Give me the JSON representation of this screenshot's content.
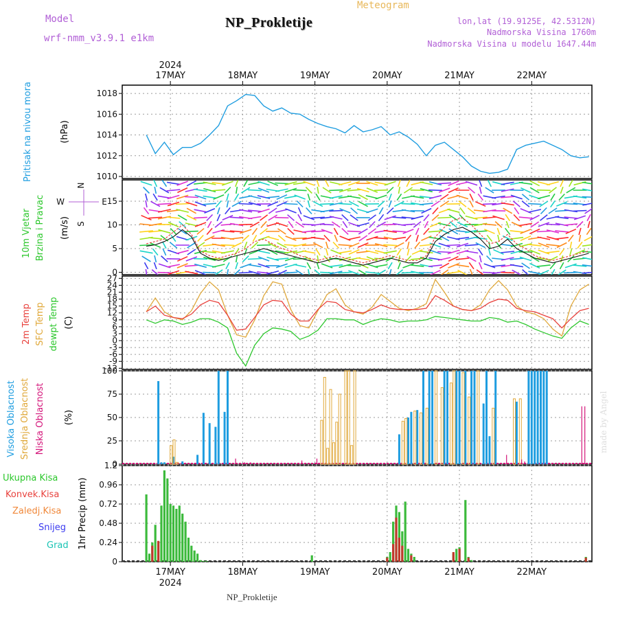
{
  "header": {
    "model_label": "Model",
    "model_name": "wrf-nmm_v3.9.1  e1km",
    "station": "NP_Prokletije",
    "meteogram": "Meteogram",
    "lonlat": "lon,lat (19.9125E, 42.5312N)",
    "altitude": "Nadmorska Visina 1760m",
    "altitude_model": "Nadmorska Visina u modelu 1647.44m"
  },
  "footer": {
    "station": "NP_Prokletije",
    "signature": "made by Angel"
  },
  "colors": {
    "pressure": "#1e9de0",
    "temp2m": "#e8413c",
    "sfc": "#e0a83a",
    "dew": "#2cc72c",
    "high": "#1e9de0",
    "mid": "#e0a83a",
    "low": "#d4157a",
    "precip": "#3cba3c",
    "conv": "#c0392b"
  },
  "chart_data": [
    {
      "type": "line",
      "panel": "pressure",
      "ylabel": "Pritisak na nivou mora",
      "unit": "(hPa)",
      "y_ticks": [
        "1018",
        "1016",
        "1014",
        "1012",
        "1010"
      ],
      "ylim": [
        1009.8,
        1018.8
      ],
      "date_labels": [
        "17MAY",
        "18MAY",
        "19MAY",
        "20MAY",
        "21MAY",
        "22MAY"
      ],
      "year_label": "2024",
      "x_hours": [
        0,
        3,
        6,
        9,
        12,
        15,
        18,
        21,
        24,
        27,
        30,
        33,
        36,
        39,
        42,
        45,
        48,
        51,
        54,
        57,
        60,
        63,
        66,
        69,
        72,
        75,
        78,
        81,
        84,
        87,
        90,
        93,
        96,
        99,
        102,
        105,
        108,
        111,
        114,
        117,
        120,
        123,
        126,
        129,
        132,
        135,
        138,
        141,
        144,
        147
      ],
      "series": [
        {
          "values": [
            1014.0,
            1012.2,
            1013.3,
            1012.1,
            1012.8,
            1012.8,
            1013.2,
            1014.0,
            1014.9,
            1016.8,
            1017.3,
            1017.9,
            1017.8,
            1016.8,
            1016.3,
            1016.6,
            1016.1,
            1016.0,
            1015.5,
            1015.1,
            1014.8,
            1014.6,
            1014.2,
            1014.9,
            1014.3,
            1014.5,
            1014.8,
            1014.0,
            1014.3,
            1013.8,
            1013.1,
            1012.0,
            1013.0,
            1013.3,
            1012.6,
            1011.9,
            1011.0,
            1010.5,
            1010.3,
            1010.4,
            1010.7,
            1012.6,
            1013.0,
            1013.2,
            1013.4,
            1013.0,
            1012.6,
            1012.0,
            1011.8,
            1011.9
          ]
        }
      ]
    },
    {
      "type": "line",
      "panel": "wind",
      "ylabel": [
        "10m Vjetar",
        "Brzina i Pravac"
      ],
      "unit": "(m/s)",
      "compass": [
        "N",
        "W",
        "E",
        "S"
      ],
      "y_ticks": [
        "15",
        "10",
        "5",
        "0"
      ],
      "ylim": [
        -0.5,
        19.5
      ],
      "x_hours": [
        0,
        3,
        6,
        9,
        12,
        15,
        18,
        21,
        24,
        27,
        30,
        33,
        36,
        39,
        42,
        45,
        48,
        51,
        54,
        57,
        60,
        63,
        66,
        69,
        72,
        75,
        78,
        81,
        84,
        87,
        90,
        93,
        96,
        99,
        102,
        105,
        108,
        111,
        114,
        117,
        120,
        123,
        126,
        129,
        132,
        135,
        138,
        141,
        144,
        147
      ],
      "series": [
        {
          "name": "speed",
          "values": [
            5.5,
            5.8,
            6.5,
            7.5,
            9.0,
            7.5,
            4.0,
            3.0,
            2.5,
            3.0,
            3.5,
            4.0,
            4.5,
            5.0,
            4.5,
            4.0,
            3.5,
            3.0,
            2.5,
            2.0,
            2.5,
            3.0,
            2.5,
            2.0,
            1.5,
            2.0,
            2.5,
            3.0,
            2.5,
            2.0,
            2.0,
            3.0,
            6.5,
            8.0,
            9.0,
            9.5,
            8.5,
            7.0,
            5.0,
            5.5,
            7.0,
            5.0,
            4.0,
            3.0,
            2.5,
            2.0,
            2.5,
            3.0,
            3.5,
            4.0
          ]
        },
        {
          "name": "gust",
          "values": [
            6.0,
            6.5,
            7.0,
            8.5,
            10.0,
            8.0,
            4.5,
            3.5,
            3.0,
            3.5,
            4.0,
            5.0,
            6.5,
            7.0,
            6.0,
            5.0,
            4.5,
            3.5,
            3.0,
            2.5,
            3.0,
            3.5,
            3.0,
            2.5,
            2.0,
            2.5,
            3.0,
            3.5,
            3.0,
            2.5,
            2.5,
            3.5,
            7.5,
            9.5,
            11.0,
            11.5,
            10.0,
            8.0,
            6.0,
            6.5,
            8.0,
            6.0,
            5.0,
            3.5,
            3.0,
            2.5,
            3.0,
            3.5,
            4.0,
            4.5
          ]
        }
      ]
    },
    {
      "type": "line",
      "panel": "temperature",
      "ylabel": [
        "2m Temp",
        "SFC Temp",
        "dewpt Temp"
      ],
      "unit": "(C)",
      "y_ticks": [
        "27",
        "24",
        "21",
        "18",
        "15",
        "12",
        "9",
        "6",
        "3",
        "0",
        "-3",
        "-6",
        "-9",
        "-12"
      ],
      "ylim": [
        -12.5,
        28
      ],
      "x_hours": [
        0,
        3,
        6,
        9,
        12,
        15,
        18,
        21,
        24,
        27,
        30,
        33,
        36,
        39,
        42,
        45,
        48,
        51,
        54,
        57,
        60,
        63,
        66,
        69,
        72,
        75,
        78,
        81,
        84,
        87,
        90,
        93,
        96,
        99,
        102,
        105,
        108,
        111,
        114,
        117,
        120,
        123,
        126,
        129,
        132,
        135,
        138,
        141,
        144,
        147
      ],
      "series": [
        {
          "name": "2m Temp",
          "values": [
            12.5,
            15.0,
            11.0,
            10.0,
            9.5,
            11.5,
            15.5,
            17.5,
            16.5,
            11.0,
            4.5,
            5.0,
            10.0,
            15.5,
            17.5,
            17.0,
            11.5,
            8.5,
            8.5,
            13.5,
            17.0,
            16.5,
            13.5,
            12.5,
            12.0,
            13.5,
            15.5,
            14.0,
            13.5,
            13.5,
            13.5,
            14.0,
            19.5,
            17.5,
            15.0,
            13.5,
            13.0,
            14.0,
            16.5,
            18.0,
            17.5,
            14.0,
            13.0,
            12.5,
            11.0,
            9.5,
            5.5,
            9.5,
            13.0,
            14.0
          ]
        },
        {
          "name": "SFC Temp",
          "values": [
            12.5,
            18.5,
            12.5,
            10.0,
            9.0,
            13.0,
            20.5,
            25.5,
            22.0,
            11.0,
            2.5,
            1.5,
            9.0,
            19.5,
            25.5,
            24.5,
            13.5,
            6.5,
            5.5,
            13.0,
            20.0,
            22.5,
            15.5,
            12.5,
            11.5,
            14.5,
            20.0,
            17.0,
            14.0,
            13.0,
            14.0,
            16.0,
            26.5,
            21.0,
            15.0,
            13.5,
            13.0,
            15.5,
            22.0,
            26.0,
            22.0,
            15.0,
            12.5,
            11.5,
            9.5,
            5.0,
            2.0,
            15.0,
            22.0,
            24.5
          ]
        },
        {
          "name": "dewpt Temp",
          "values": [
            9.0,
            7.5,
            9.0,
            8.5,
            7.0,
            8.0,
            9.5,
            9.5,
            8.0,
            5.5,
            -5.5,
            -11.0,
            -2.0,
            3.0,
            5.5,
            5.0,
            4.0,
            0.5,
            2.0,
            4.5,
            9.5,
            9.5,
            9.0,
            9.0,
            7.0,
            8.5,
            9.5,
            9.0,
            8.0,
            8.5,
            8.5,
            9.0,
            10.5,
            10.0,
            9.5,
            9.0,
            8.5,
            8.5,
            10.0,
            9.5,
            8.0,
            8.5,
            7.0,
            5.0,
            3.5,
            2.0,
            1.0,
            5.5,
            8.5,
            7.0
          ]
        }
      ]
    },
    {
      "type": "bar",
      "panel": "cloud",
      "ylabel": [
        "Visoka Oblacnost",
        "Srednja Oblacnost",
        "Niska Oblacnost"
      ],
      "unit": "(%)",
      "y_ticks": [
        "100",
        "75",
        "50",
        "25",
        "0"
      ],
      "ylim": [
        0,
        100
      ],
      "series": [
        {
          "name": "Visoka Oblacnost",
          "x_hours": [
            4,
            5,
            6,
            9,
            12,
            17,
            19,
            21,
            23,
            24,
            26,
            27,
            84,
            87,
            88,
            90,
            92,
            94,
            95,
            99,
            100,
            103,
            104,
            106,
            108,
            109,
            112,
            113,
            114,
            116,
            123,
            127,
            128,
            129,
            130,
            131,
            132,
            133
          ],
          "values": [
            89,
            2,
            2,
            8,
            3,
            10,
            55,
            44,
            40,
            100,
            56,
            100,
            32,
            50,
            56,
            58,
            100,
            100,
            100,
            100,
            100,
            100,
            100,
            100,
            100,
            100,
            65,
            100,
            30,
            100,
            67,
            100,
            100,
            100,
            100,
            100,
            100,
            100
          ]
        },
        {
          "name": "Srednja Oblacnost",
          "x_hours": [
            8,
            9,
            10,
            58,
            59,
            60,
            61,
            62,
            63,
            64,
            66,
            67,
            68,
            69,
            85,
            86,
            89,
            91,
            93,
            96,
            98,
            101,
            102,
            105,
            107,
            110,
            115,
            122,
            124
          ],
          "values": [
            20,
            26,
            2,
            47,
            93,
            17,
            80,
            23,
            45,
            75,
            100,
            100,
            20,
            100,
            46,
            49,
            57,
            55,
            60,
            100,
            82,
            87,
            100,
            98,
            72,
            100,
            60,
            70,
            70
          ]
        },
        {
          "name": "Niska Oblacnost",
          "x_hours": [
            30,
            33,
            35,
            52,
            57,
            120,
            125,
            126,
            145,
            146
          ],
          "values": [
            6,
            2,
            2,
            4,
            6,
            10,
            5,
            3,
            62,
            62
          ]
        }
      ]
    },
    {
      "type": "bar",
      "panel": "precip",
      "ylabel": "1hr Precip (mm)",
      "legend": [
        "Ukupna Kisa",
        "Konvek.Kisa",
        "Zaledj.Kisa",
        "Snijeg",
        "Grad"
      ],
      "y_ticks": [
        "1.2",
        "0.96",
        "0.72",
        "0.48",
        "0.24",
        "0"
      ],
      "ylim": [
        0,
        1.2
      ],
      "series": [
        {
          "name": "Ukupna Kisa",
          "x_hours": [
            0,
            1,
            2,
            3,
            4,
            5,
            6,
            7,
            8,
            9,
            10,
            11,
            12,
            13,
            14,
            15,
            16,
            17,
            18,
            19,
            20,
            55,
            80,
            81,
            82,
            83,
            84,
            85,
            86,
            87,
            88,
            89,
            102,
            103,
            104,
            106,
            107,
            108,
            146
          ],
          "values": [
            0.84,
            0.1,
            0.24,
            0.46,
            0.24,
            0.7,
            1.14,
            1.04,
            0.72,
            0.7,
            0.66,
            0.7,
            0.6,
            0.5,
            0.3,
            0.2,
            0.14,
            0.1,
            0.02,
            0.01,
            0.01,
            0.08,
            0.06,
            0.12,
            0.5,
            0.7,
            0.62,
            0.38,
            0.75,
            0.16,
            0.1,
            0.06,
            0.1,
            0.16,
            0.18,
            0.77,
            0.06,
            0.02,
            0.06
          ]
        },
        {
          "name": "Konvek.Kisa",
          "x_hours": [
            2,
            4,
            80,
            82,
            83,
            84,
            85,
            88,
            102,
            104,
            107,
            146
          ],
          "values": [
            0.2,
            0.26,
            0.05,
            0.22,
            0.55,
            0.3,
            0.2,
            0.08,
            0.12,
            0.16,
            0.05,
            0.05
          ]
        }
      ]
    }
  ]
}
